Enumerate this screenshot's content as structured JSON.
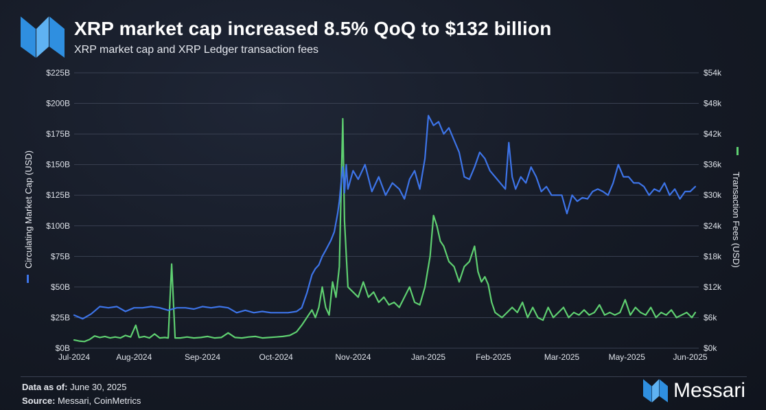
{
  "header": {
    "title": "XRP market cap increased 8.5% QoQ to $132 billion",
    "subtitle": "XRP market cap and XRP Ledger transaction fees"
  },
  "footer": {
    "data_as_of_label": "Data as of:",
    "data_as_of_value": "June 30, 2025",
    "source_label": "Source:",
    "source_value": "Messari, CoinMetrics"
  },
  "brand": {
    "name": "Messari"
  },
  "colors": {
    "market_cap": "#3d74e8",
    "fees": "#5fd071",
    "grid": "#3a4152",
    "brand_blue": "#2f8fe0"
  },
  "chart_data": {
    "type": "line",
    "title": "XRP market cap increased 8.5% QoQ to $132 billion",
    "subtitle": "XRP market cap and XRP Ledger transaction fees",
    "x_range": [
      0,
      365
    ],
    "x_ticks": [
      {
        "label": "Jul-2024",
        "t": 0
      },
      {
        "label": "Aug-2024",
        "t": 35
      },
      {
        "label": "Sep-2024",
        "t": 75
      },
      {
        "label": "Oct-2024",
        "t": 118
      },
      {
        "label": "Nov-2024",
        "t": 163
      },
      {
        "label": "Jan-2025",
        "t": 207
      },
      {
        "label": "Feb-2025",
        "t": 245
      },
      {
        "label": "Mar-2025",
        "t": 285
      },
      {
        "label": "May-2025",
        "t": 323
      },
      {
        "label": "Jun-2025",
        "t": 360
      }
    ],
    "left_axis": {
      "label": "Circulating Market Cap (USD)",
      "ylim": [
        0,
        225
      ],
      "ticks": [
        "$0B",
        "$25B",
        "$50B",
        "$75B",
        "$100B",
        "$125B",
        "$150B",
        "$175B",
        "$200B",
        "$225B"
      ],
      "tick_values": [
        0,
        25,
        50,
        75,
        100,
        125,
        150,
        175,
        200,
        225
      ]
    },
    "right_axis": {
      "label": "Transaction Fees (USD)",
      "ylim": [
        0,
        54
      ],
      "ticks": [
        "$0k",
        "$6k",
        "$12k",
        "$18k",
        "$24k",
        "$30k",
        "$36k",
        "$42k",
        "$48k",
        "$54k"
      ],
      "tick_values": [
        0,
        6,
        12,
        18,
        24,
        30,
        36,
        42,
        48,
        54
      ]
    },
    "series": [
      {
        "name": "Circulating Market Cap (USD)",
        "axis": "left",
        "unit": "USD billions",
        "points": [
          [
            0,
            27
          ],
          [
            5,
            24
          ],
          [
            10,
            28
          ],
          [
            15,
            34
          ],
          [
            20,
            33
          ],
          [
            25,
            34
          ],
          [
            30,
            30
          ],
          [
            35,
            33
          ],
          [
            40,
            33
          ],
          [
            45,
            34
          ],
          [
            50,
            33
          ],
          [
            55,
            31
          ],
          [
            60,
            33
          ],
          [
            65,
            33
          ],
          [
            70,
            32
          ],
          [
            75,
            34
          ],
          [
            80,
            33
          ],
          [
            85,
            34
          ],
          [
            90,
            33
          ],
          [
            95,
            29
          ],
          [
            100,
            31
          ],
          [
            105,
            29
          ],
          [
            110,
            30
          ],
          [
            115,
            29
          ],
          [
            120,
            29
          ],
          [
            125,
            29
          ],
          [
            130,
            30
          ],
          [
            133,
            33
          ],
          [
            136,
            45
          ],
          [
            139,
            60
          ],
          [
            141,
            65
          ],
          [
            143,
            68
          ],
          [
            145,
            75
          ],
          [
            147,
            80
          ],
          [
            150,
            88
          ],
          [
            152,
            95
          ],
          [
            154,
            110
          ],
          [
            155,
            120
          ],
          [
            156,
            135
          ],
          [
            157,
            148
          ],
          [
            158,
            127
          ],
          [
            159,
            150
          ],
          [
            160,
            130
          ],
          [
            163,
            145
          ],
          [
            166,
            138
          ],
          [
            170,
            150
          ],
          [
            174,
            128
          ],
          [
            178,
            140
          ],
          [
            182,
            125
          ],
          [
            186,
            135
          ],
          [
            190,
            130
          ],
          [
            193,
            122
          ],
          [
            196,
            138
          ],
          [
            199,
            145
          ],
          [
            202,
            130
          ],
          [
            205,
            155
          ],
          [
            207,
            190
          ],
          [
            210,
            182
          ],
          [
            213,
            185
          ],
          [
            216,
            175
          ],
          [
            219,
            180
          ],
          [
            222,
            170
          ],
          [
            225,
            160
          ],
          [
            228,
            140
          ],
          [
            231,
            138
          ],
          [
            234,
            148
          ],
          [
            237,
            160
          ],
          [
            240,
            155
          ],
          [
            243,
            145
          ],
          [
            246,
            140
          ],
          [
            249,
            135
          ],
          [
            252,
            130
          ],
          [
            254,
            168
          ],
          [
            256,
            140
          ],
          [
            258,
            130
          ],
          [
            261,
            140
          ],
          [
            264,
            135
          ],
          [
            267,
            148
          ],
          [
            270,
            140
          ],
          [
            273,
            128
          ],
          [
            276,
            132
          ],
          [
            279,
            125
          ],
          [
            282,
            125
          ],
          [
            285,
            125
          ],
          [
            288,
            110
          ],
          [
            291,
            125
          ],
          [
            294,
            120
          ],
          [
            297,
            123
          ],
          [
            300,
            122
          ],
          [
            303,
            128
          ],
          [
            306,
            130
          ],
          [
            309,
            128
          ],
          [
            312,
            125
          ],
          [
            315,
            135
          ],
          [
            318,
            150
          ],
          [
            321,
            140
          ],
          [
            324,
            140
          ],
          [
            327,
            135
          ],
          [
            330,
            135
          ],
          [
            333,
            132
          ],
          [
            336,
            125
          ],
          [
            339,
            130
          ],
          [
            342,
            128
          ],
          [
            345,
            135
          ],
          [
            348,
            125
          ],
          [
            351,
            130
          ],
          [
            354,
            122
          ],
          [
            357,
            128
          ],
          [
            360,
            128
          ],
          [
            363,
            132
          ]
        ]
      },
      {
        "name": "Transaction Fees (USD)",
        "axis": "right",
        "unit": "USD thousands",
        "points": [
          [
            0,
            1.6
          ],
          [
            3,
            1.4
          ],
          [
            6,
            1.3
          ],
          [
            9,
            1.7
          ],
          [
            12,
            2.4
          ],
          [
            15,
            2.1
          ],
          [
            18,
            2.3
          ],
          [
            21,
            2.0
          ],
          [
            24,
            2.2
          ],
          [
            27,
            2.0
          ],
          [
            30,
            2.5
          ],
          [
            33,
            2.2
          ],
          [
            36,
            4.5
          ],
          [
            38,
            2.1
          ],
          [
            41,
            2.3
          ],
          [
            44,
            2.0
          ],
          [
            47,
            2.8
          ],
          [
            50,
            2.0
          ],
          [
            53,
            2.1
          ],
          [
            55,
            2.0
          ],
          [
            57,
            16.5
          ],
          [
            59,
            2.0
          ],
          [
            62,
            2.0
          ],
          [
            66,
            2.2
          ],
          [
            70,
            2.0
          ],
          [
            74,
            2.1
          ],
          [
            78,
            2.3
          ],
          [
            82,
            2.0
          ],
          [
            86,
            2.1
          ],
          [
            90,
            3.0
          ],
          [
            94,
            2.1
          ],
          [
            98,
            2.0
          ],
          [
            102,
            2.2
          ],
          [
            106,
            2.3
          ],
          [
            110,
            2.0
          ],
          [
            114,
            2.1
          ],
          [
            118,
            2.2
          ],
          [
            122,
            2.3
          ],
          [
            126,
            2.5
          ],
          [
            130,
            3.2
          ],
          [
            133,
            4.5
          ],
          [
            136,
            6.0
          ],
          [
            139,
            7.5
          ],
          [
            141,
            6.0
          ],
          [
            143,
            8.0
          ],
          [
            145,
            12.0
          ],
          [
            147,
            8.0
          ],
          [
            149,
            6.5
          ],
          [
            151,
            13.0
          ],
          [
            153,
            10.0
          ],
          [
            155,
            16.0
          ],
          [
            157,
            45.0
          ],
          [
            158,
            25.0
          ],
          [
            160,
            12.0
          ],
          [
            163,
            11.0
          ],
          [
            166,
            10.0
          ],
          [
            169,
            13.0
          ],
          [
            172,
            10.0
          ],
          [
            175,
            11.0
          ],
          [
            178,
            9.0
          ],
          [
            181,
            10.0
          ],
          [
            184,
            8.5
          ],
          [
            187,
            9.0
          ],
          [
            190,
            8.0
          ],
          [
            193,
            10.0
          ],
          [
            196,
            12.0
          ],
          [
            199,
            9.0
          ],
          [
            202,
            8.5
          ],
          [
            205,
            12.0
          ],
          [
            208,
            18.0
          ],
          [
            210,
            26.0
          ],
          [
            212,
            24.0
          ],
          [
            214,
            21.0
          ],
          [
            216,
            20.0
          ],
          [
            219,
            17.0
          ],
          [
            222,
            16.0
          ],
          [
            225,
            13.0
          ],
          [
            228,
            16.0
          ],
          [
            231,
            17.0
          ],
          [
            234,
            20.0
          ],
          [
            236,
            15.0
          ],
          [
            238,
            13.0
          ],
          [
            240,
            14.0
          ],
          [
            242,
            12.5
          ],
          [
            244,
            9.0
          ],
          [
            246,
            7.0
          ],
          [
            248,
            6.5
          ],
          [
            250,
            6.0
          ],
          [
            253,
            7.0
          ],
          [
            256,
            8.0
          ],
          [
            259,
            7.0
          ],
          [
            262,
            9.0
          ],
          [
            265,
            6.0
          ],
          [
            268,
            8.0
          ],
          [
            271,
            6.0
          ],
          [
            274,
            5.5
          ],
          [
            277,
            8.0
          ],
          [
            280,
            6.0
          ],
          [
            283,
            7.0
          ],
          [
            286,
            8.0
          ],
          [
            289,
            6.0
          ],
          [
            292,
            7.0
          ],
          [
            295,
            6.5
          ],
          [
            298,
            7.5
          ],
          [
            301,
            6.5
          ],
          [
            304,
            7.0
          ],
          [
            307,
            8.5
          ],
          [
            310,
            6.5
          ],
          [
            313,
            7.0
          ],
          [
            316,
            6.5
          ],
          [
            319,
            7.0
          ],
          [
            322,
            9.5
          ],
          [
            325,
            6.5
          ],
          [
            328,
            8.0
          ],
          [
            331,
            7.0
          ],
          [
            334,
            6.5
          ],
          [
            337,
            8.0
          ],
          [
            340,
            6.0
          ],
          [
            343,
            7.0
          ],
          [
            346,
            6.5
          ],
          [
            349,
            7.5
          ],
          [
            352,
            6.0
          ],
          [
            355,
            6.5
          ],
          [
            358,
            7.0
          ],
          [
            361,
            6.0
          ],
          [
            363,
            7.0
          ]
        ]
      }
    ]
  }
}
